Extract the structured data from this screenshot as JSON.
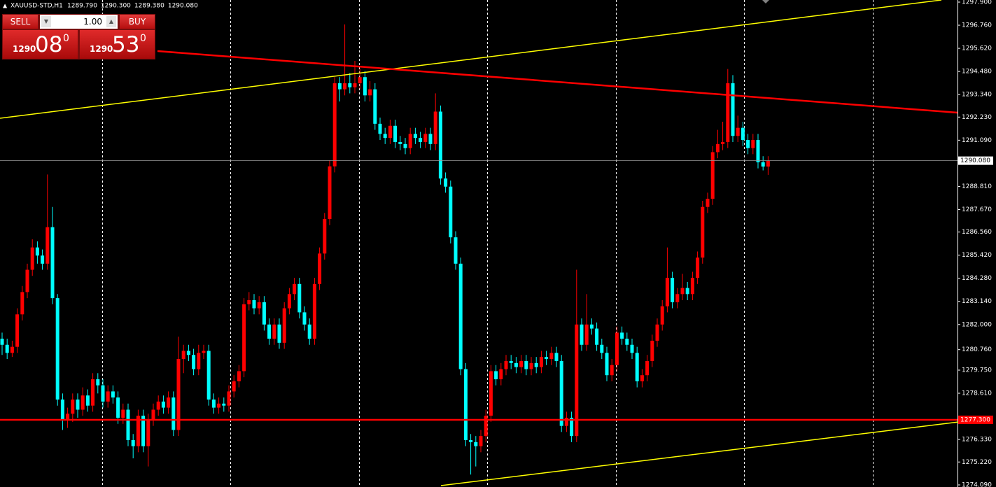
{
  "chart_data": {
    "type": "candlestick",
    "title": "XAUUSD-STD,H1",
    "header_values": [
      "1289.790",
      "1290.300",
      "1289.380",
      "1290.080"
    ],
    "up_color": "#ff0000",
    "down_color": "#00ffff",
    "ylim": [
      1274.09,
      1297.9
    ],
    "yticks": [
      {
        "value": 1297.9,
        "label": "1297.900"
      },
      {
        "value": 1296.76,
        "label": "1296.760"
      },
      {
        "value": 1295.62,
        "label": "1295.620"
      },
      {
        "value": 1294.48,
        "label": "1294.480"
      },
      {
        "value": 1293.34,
        "label": "1293.340"
      },
      {
        "value": 1292.23,
        "label": "1292.230"
      },
      {
        "value": 1291.09,
        "label": "1291.090"
      },
      {
        "value": 1288.81,
        "label": "1288.810"
      },
      {
        "value": 1287.67,
        "label": "1287.670"
      },
      {
        "value": 1286.56,
        "label": "1286.560"
      },
      {
        "value": 1285.42,
        "label": "1285.420"
      },
      {
        "value": 1284.28,
        "label": "1284.280"
      },
      {
        "value": 1283.14,
        "label": "1283.140"
      },
      {
        "value": 1282,
        "label": "1282.000"
      },
      {
        "value": 1280.76,
        "label": "1280.760"
      },
      {
        "value": 1279.75,
        "label": "1279.750"
      },
      {
        "value": 1278.61,
        "label": "1278.610"
      },
      {
        "value": 1276.33,
        "label": "1276.330"
      },
      {
        "value": 1275.22,
        "label": "1275.220"
      },
      {
        "value": 1274.09,
        "label": "1274.090"
      }
    ],
    "last_price": {
      "value": 1290.08,
      "label": "1290.080"
    },
    "hline": {
      "value": 1277.3,
      "label": "1277.300",
      "color": "#ff0000"
    },
    "ohlc": [
      [
        1281.3,
        1281.6,
        1280.5,
        1281.0
      ],
      [
        1281.0,
        1281.3,
        1280.3,
        1280.6
      ],
      [
        1280.6,
        1281.2,
        1280.4,
        1280.9
      ],
      [
        1280.9,
        1282.8,
        1280.6,
        1282.5
      ],
      [
        1282.5,
        1283.9,
        1282.2,
        1283.6
      ],
      [
        1283.6,
        1285.0,
        1283.3,
        1284.7
      ],
      [
        1284.7,
        1286.2,
        1284.4,
        1285.8
      ],
      [
        1285.8,
        1286.1,
        1285.0,
        1285.4
      ],
      [
        1285.4,
        1285.7,
        1284.7,
        1285.0
      ],
      [
        1285.0,
        1289.4,
        1284.7,
        1286.8
      ],
      [
        1286.8,
        1287.8,
        1283.0,
        1283.3
      ],
      [
        1283.3,
        1283.5,
        1278.0,
        1278.3
      ],
      [
        1278.3,
        1278.6,
        1276.8,
        1277.3
      ],
      [
        1277.3,
        1277.9,
        1276.9,
        1277.6
      ],
      [
        1277.6,
        1278.6,
        1277.2,
        1278.3
      ],
      [
        1278.3,
        1278.6,
        1277.4,
        1277.8
      ],
      [
        1277.8,
        1278.9,
        1277.5,
        1278.5
      ],
      [
        1278.5,
        1278.8,
        1277.7,
        1278.0
      ],
      [
        1278.0,
        1279.6,
        1277.7,
        1279.3
      ],
      [
        1279.3,
        1279.6,
        1278.6,
        1279.0
      ],
      [
        1279.0,
        1279.3,
        1277.9,
        1278.2
      ],
      [
        1278.2,
        1279.0,
        1277.9,
        1278.7
      ],
      [
        1278.7,
        1279.0,
        1278.1,
        1278.4
      ],
      [
        1278.4,
        1278.7,
        1277.1,
        1277.4
      ],
      [
        1277.4,
        1278.1,
        1277.1,
        1277.8
      ],
      [
        1277.8,
        1278.1,
        1276.0,
        1276.3
      ],
      [
        1276.3,
        1276.6,
        1275.4,
        1276.0
      ],
      [
        1276.0,
        1277.8,
        1275.7,
        1277.5
      ],
      [
        1277.5,
        1277.8,
        1275.7,
        1276.0
      ],
      [
        1276.0,
        1277.6,
        1275.0,
        1277.3
      ],
      [
        1277.3,
        1278.1,
        1277.0,
        1277.8
      ],
      [
        1277.8,
        1278.5,
        1277.5,
        1278.2
      ],
      [
        1278.2,
        1278.5,
        1277.6,
        1277.9
      ],
      [
        1277.9,
        1278.7,
        1277.6,
        1278.4
      ],
      [
        1278.4,
        1278.7,
        1276.5,
        1276.8
      ],
      [
        1276.8,
        1281.4,
        1276.5,
        1280.3
      ],
      [
        1280.3,
        1281.0,
        1279.6,
        1280.7
      ],
      [
        1280.7,
        1281.0,
        1280.2,
        1280.5
      ],
      [
        1280.5,
        1280.8,
        1279.5,
        1279.8
      ],
      [
        1279.8,
        1281.0,
        1279.5,
        1280.6
      ],
      [
        1280.6,
        1281.0,
        1280.3,
        1280.7
      ],
      [
        1280.7,
        1281.0,
        1278.0,
        1278.3
      ],
      [
        1278.3,
        1278.6,
        1277.6,
        1277.9
      ],
      [
        1277.9,
        1278.4,
        1277.6,
        1278.1
      ],
      [
        1278.1,
        1278.4,
        1277.7,
        1278.0
      ],
      [
        1278.0,
        1279.0,
        1277.7,
        1278.7
      ],
      [
        1278.7,
        1279.5,
        1278.4,
        1279.2
      ],
      [
        1279.2,
        1280.0,
        1278.9,
        1279.7
      ],
      [
        1279.7,
        1283.3,
        1279.4,
        1283.0
      ],
      [
        1283.0,
        1283.6,
        1282.7,
        1283.2
      ],
      [
        1283.2,
        1283.5,
        1282.5,
        1282.8
      ],
      [
        1282.8,
        1283.4,
        1282.5,
        1283.1
      ],
      [
        1283.1,
        1283.4,
        1281.7,
        1282.0
      ],
      [
        1282.0,
        1282.3,
        1281.0,
        1281.3
      ],
      [
        1281.3,
        1282.3,
        1281.0,
        1282.0
      ],
      [
        1282.0,
        1282.3,
        1280.8,
        1281.1
      ],
      [
        1281.1,
        1283.1,
        1280.8,
        1282.8
      ],
      [
        1282.8,
        1283.8,
        1282.5,
        1283.5
      ],
      [
        1283.5,
        1284.3,
        1283.2,
        1284.0
      ],
      [
        1284.0,
        1284.3,
        1282.3,
        1282.6
      ],
      [
        1282.6,
        1282.9,
        1281.7,
        1282.0
      ],
      [
        1282.0,
        1282.3,
        1281.0,
        1281.3
      ],
      [
        1281.3,
        1284.3,
        1281.0,
        1284.0
      ],
      [
        1284.0,
        1285.8,
        1283.7,
        1285.5
      ],
      [
        1285.5,
        1287.5,
        1285.2,
        1287.2
      ],
      [
        1287.2,
        1290.1,
        1286.9,
        1289.8
      ],
      [
        1289.8,
        1294.2,
        1289.5,
        1293.9
      ],
      [
        1293.9,
        1294.2,
        1293.0,
        1293.6
      ],
      [
        1293.6,
        1296.8,
        1293.3,
        1293.9
      ],
      [
        1293.9,
        1294.4,
        1293.4,
        1293.7
      ],
      [
        1293.7,
        1295.0,
        1293.4,
        1293.9
      ],
      [
        1293.9,
        1294.6,
        1293.6,
        1294.2
      ],
      [
        1294.2,
        1294.5,
        1293.0,
        1293.3
      ],
      [
        1293.3,
        1294.0,
        1293.0,
        1293.6
      ],
      [
        1293.6,
        1293.9,
        1291.6,
        1291.9
      ],
      [
        1291.9,
        1292.2,
        1291.1,
        1291.4
      ],
      [
        1291.4,
        1291.7,
        1290.9,
        1291.2
      ],
      [
        1291.2,
        1292.1,
        1290.9,
        1291.8
      ],
      [
        1291.8,
        1292.1,
        1290.7,
        1291.0
      ],
      [
        1291.0,
        1291.3,
        1290.6,
        1290.9
      ],
      [
        1290.9,
        1291.2,
        1290.4,
        1290.7
      ],
      [
        1290.7,
        1291.7,
        1290.4,
        1291.4
      ],
      [
        1291.4,
        1291.7,
        1290.9,
        1291.2
      ],
      [
        1291.2,
        1291.5,
        1290.7,
        1291.0
      ],
      [
        1291.0,
        1291.7,
        1290.7,
        1291.4
      ],
      [
        1291.4,
        1291.7,
        1290.6,
        1290.9
      ],
      [
        1290.9,
        1293.4,
        1290.6,
        1292.5
      ],
      [
        1292.5,
        1292.8,
        1288.9,
        1289.2
      ],
      [
        1289.2,
        1289.5,
        1288.5,
        1288.8
      ],
      [
        1288.8,
        1289.1,
        1286.0,
        1286.3
      ],
      [
        1286.3,
        1286.6,
        1284.7,
        1285.0
      ],
      [
        1285.0,
        1285.3,
        1279.5,
        1279.8
      ],
      [
        1279.8,
        1280.1,
        1276.0,
        1276.3
      ],
      [
        1276.3,
        1276.6,
        1274.6,
        1276.2
      ],
      [
        1276.2,
        1276.5,
        1275.0,
        1276.0
      ],
      [
        1276.0,
        1276.8,
        1275.7,
        1276.5
      ],
      [
        1276.5,
        1277.8,
        1276.2,
        1277.5
      ],
      [
        1277.5,
        1280.0,
        1277.2,
        1279.7
      ],
      [
        1279.7,
        1280.0,
        1279.0,
        1279.3
      ],
      [
        1279.3,
        1280.1,
        1279.0,
        1279.8
      ],
      [
        1279.8,
        1280.5,
        1279.5,
        1280.2
      ],
      [
        1280.2,
        1280.5,
        1279.8,
        1280.1
      ],
      [
        1280.1,
        1280.4,
        1279.6,
        1279.9
      ],
      [
        1279.9,
        1280.5,
        1279.6,
        1280.2
      ],
      [
        1280.2,
        1280.5,
        1279.5,
        1279.8
      ],
      [
        1279.8,
        1280.4,
        1279.5,
        1280.1
      ],
      [
        1280.1,
        1280.4,
        1279.6,
        1279.9
      ],
      [
        1279.9,
        1280.7,
        1279.6,
        1280.4
      ],
      [
        1280.4,
        1280.7,
        1280.0,
        1280.3
      ],
      [
        1280.3,
        1280.9,
        1280.0,
        1280.6
      ],
      [
        1280.6,
        1280.9,
        1279.9,
        1280.2
      ],
      [
        1280.2,
        1280.5,
        1276.7,
        1277.0
      ],
      [
        1277.0,
        1277.7,
        1276.7,
        1277.4
      ],
      [
        1277.4,
        1277.7,
        1276.2,
        1276.5
      ],
      [
        1276.5,
        1284.7,
        1276.2,
        1282.0
      ],
      [
        1282.0,
        1282.3,
        1280.7,
        1281.0
      ],
      [
        1281.0,
        1283.5,
        1280.7,
        1282.0
      ],
      [
        1282.0,
        1282.3,
        1281.5,
        1281.8
      ],
      [
        1281.8,
        1282.1,
        1280.7,
        1281.0
      ],
      [
        1281.0,
        1281.3,
        1280.3,
        1280.6
      ],
      [
        1280.6,
        1280.9,
        1279.2,
        1279.5
      ],
      [
        1279.5,
        1280.3,
        1279.2,
        1280.0
      ],
      [
        1280.0,
        1281.9,
        1279.7,
        1281.6
      ],
      [
        1281.6,
        1281.9,
        1281.0,
        1281.3
      ],
      [
        1281.3,
        1281.6,
        1280.7,
        1281.0
      ],
      [
        1281.0,
        1281.3,
        1280.3,
        1280.6
      ],
      [
        1280.6,
        1280.9,
        1278.9,
        1279.2
      ],
      [
        1279.2,
        1279.8,
        1278.9,
        1279.5
      ],
      [
        1279.5,
        1280.5,
        1279.2,
        1280.2
      ],
      [
        1280.2,
        1281.5,
        1279.9,
        1281.2
      ],
      [
        1281.2,
        1282.3,
        1280.9,
        1282.0
      ],
      [
        1282.0,
        1283.2,
        1281.7,
        1282.9
      ],
      [
        1282.9,
        1285.8,
        1282.6,
        1284.3
      ],
      [
        1284.3,
        1284.6,
        1282.8,
        1283.1
      ],
      [
        1283.1,
        1283.8,
        1282.8,
        1283.5
      ],
      [
        1283.5,
        1284.5,
        1283.2,
        1283.8
      ],
      [
        1283.8,
        1284.1,
        1283.2,
        1283.5
      ],
      [
        1283.5,
        1284.6,
        1283.2,
        1284.3
      ],
      [
        1284.3,
        1285.6,
        1284.0,
        1285.3
      ],
      [
        1285.3,
        1288.1,
        1285.0,
        1287.8
      ],
      [
        1287.8,
        1288.5,
        1287.5,
        1288.2
      ],
      [
        1288.2,
        1290.8,
        1287.9,
        1290.5
      ],
      [
        1290.5,
        1291.6,
        1290.2,
        1290.9
      ],
      [
        1290.9,
        1292.0,
        1290.6,
        1291.0
      ],
      [
        1291.0,
        1294.6,
        1290.7,
        1293.9
      ],
      [
        1293.9,
        1294.3,
        1291.0,
        1291.3
      ],
      [
        1291.3,
        1292.3,
        1291.0,
        1291.7
      ],
      [
        1291.7,
        1292.0,
        1290.8,
        1291.1
      ],
      [
        1291.1,
        1291.4,
        1290.4,
        1290.7
      ],
      [
        1290.7,
        1291.4,
        1290.4,
        1291.1
      ],
      [
        1291.1,
        1291.4,
        1289.7,
        1290.0
      ],
      [
        1290.0,
        1290.3,
        1289.6,
        1289.79
      ],
      [
        1289.79,
        1290.3,
        1289.38,
        1290.08
      ]
    ]
  },
  "trade_panel": {
    "sell": "SELL",
    "buy": "BUY",
    "lots": "1.00",
    "bid_big": "1290",
    "bid_pips": "08",
    "bid_frac": "0",
    "ask_big": "1290",
    "ask_pips": "53",
    "ask_frac": "0"
  }
}
